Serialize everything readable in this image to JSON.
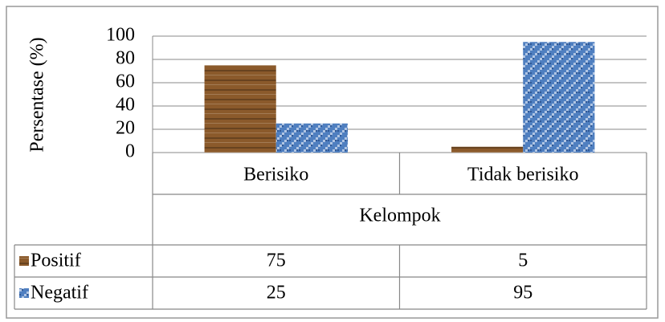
{
  "chart_data": {
    "type": "bar",
    "y_label": "Persentase (%)",
    "x_label": "Kelompok",
    "categories": [
      "Berisiko",
      "Tidak berisiko"
    ],
    "series": [
      {
        "name": "Positif",
        "color": "#8b5a2b",
        "values": [
          75,
          5
        ]
      },
      {
        "name": "Negatif",
        "color": "#4f7fc0",
        "values": [
          25,
          95
        ]
      }
    ],
    "ylim": [
      0,
      100
    ],
    "yticks": [
      0,
      20,
      40,
      60,
      80,
      100
    ],
    "grid": true,
    "data_table": true
  }
}
